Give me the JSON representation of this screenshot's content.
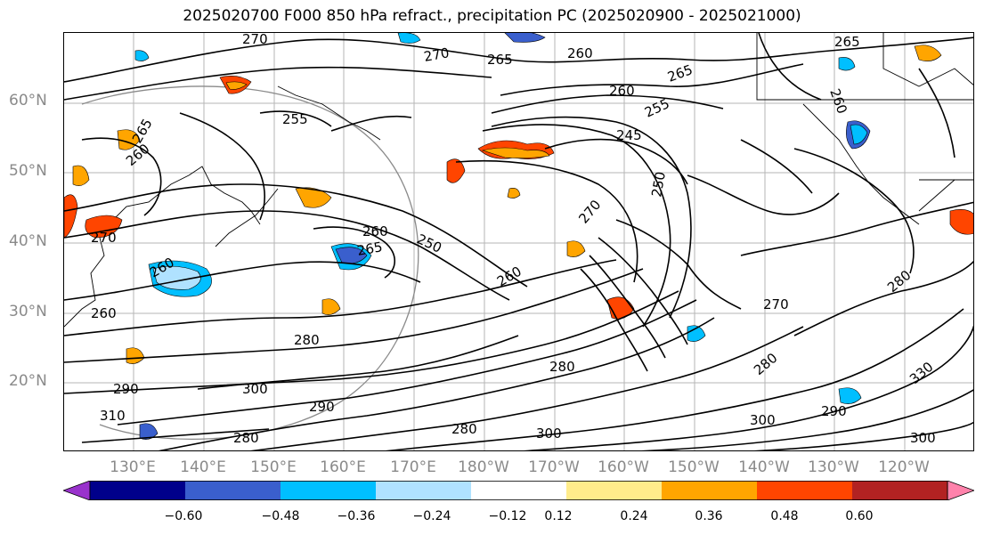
{
  "title": "2025020700 F000 850 hPa refract., precipitation PC (2025020900 - 2025021000)",
  "latitude_labels": [
    "60°N",
    "50°N",
    "40°N",
    "30°N",
    "20°N"
  ],
  "longitude_labels": [
    "130°E",
    "140°E",
    "150°E",
    "160°E",
    "170°E",
    "180°W",
    "170°W",
    "160°W",
    "150°W",
    "140°W",
    "130°W",
    "120°W"
  ],
  "contour_labels": [
    "270",
    "270",
    "265",
    "260",
    "265",
    "265",
    "260",
    "260",
    "255",
    "250",
    "245",
    "265",
    "260",
    "255",
    "260",
    "270",
    "265",
    "260",
    "260",
    "270",
    "250",
    "260",
    "280",
    "270",
    "280",
    "280",
    "280",
    "290",
    "300",
    "310",
    "290",
    "280",
    "290",
    "300",
    "300",
    "280",
    "300",
    "330"
  ],
  "colorbar": {
    "tick_labels": [
      "−0.60",
      "−0.48",
      "−0.36",
      "−0.24",
      "−0.12",
      "0.12",
      "0.24",
      "0.36",
      "0.48",
      "0.60"
    ],
    "colors": [
      "#9932cc",
      "#00008b",
      "#3a5fcd",
      "#00bfff",
      "#b0e2ff",
      "#ffffff",
      "#ffec8b",
      "#ffa500",
      "#ff4500",
      "#b22222",
      "#ff82ab"
    ]
  }
}
